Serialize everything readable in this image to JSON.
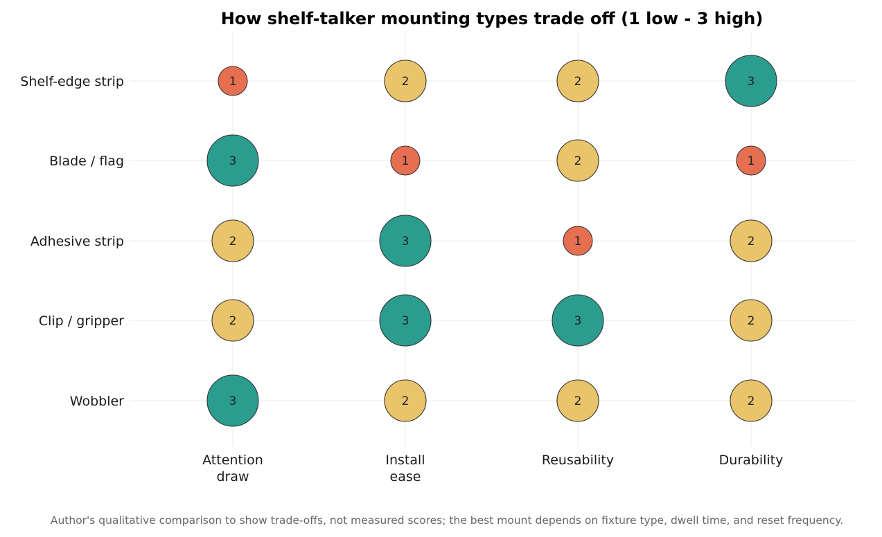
{
  "chart_data": {
    "type": "bubble",
    "title": "How shelf-talker mounting types trade off (1 low - 3 high)",
    "caption": "Author's qualitative comparison to show trade-offs, not measured scores; the best mount depends on fixture type, dwell time, and reset frequency.",
    "x_categories": [
      [
        "Attention",
        "draw"
      ],
      [
        "Install",
        "ease"
      ],
      [
        "Reusability"
      ],
      [
        "Durability"
      ]
    ],
    "y_categories": [
      "Shelf-edge strip",
      "Blade / flag",
      "Adhesive strip",
      "Clip / gripper",
      "Wobbler"
    ],
    "values": [
      [
        1,
        2,
        2,
        3
      ],
      [
        3,
        1,
        2,
        1
      ],
      [
        2,
        3,
        1,
        2
      ],
      [
        2,
        3,
        3,
        2
      ],
      [
        3,
        2,
        2,
        2
      ]
    ],
    "scale": [
      1,
      3
    ],
    "colors": {
      "1": "#e76f51",
      "2": "#e9c46a",
      "3": "#2a9d8f"
    },
    "grid": true,
    "legend": "none"
  }
}
